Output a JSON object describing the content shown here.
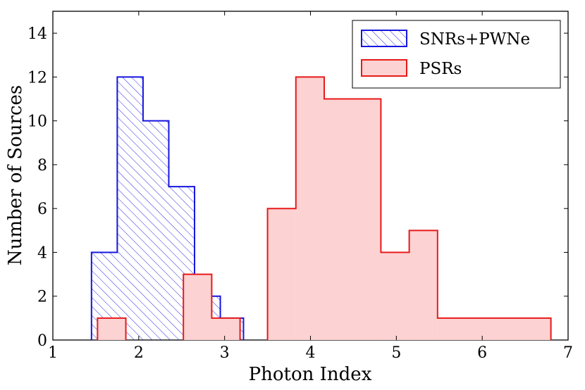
{
  "chart_data": {
    "type": "histogram",
    "xlabel": "Photon Index",
    "ylabel": "Number of Sources",
    "xlim": [
      1,
      7
    ],
    "ylim": [
      0,
      15
    ],
    "x_ticks": [
      1,
      2,
      3,
      4,
      5,
      6,
      7
    ],
    "y_ticks": [
      0,
      2,
      4,
      6,
      8,
      10,
      12,
      14
    ],
    "grid": false,
    "legend_position": "top-right",
    "series": [
      {
        "name": "SNRs+PWNe",
        "style": "hatched",
        "color": "#1515e0",
        "bins": [
          {
            "x0": 1.45,
            "x1": 1.75,
            "count": 4
          },
          {
            "x0": 1.75,
            "x1": 2.05,
            "count": 12
          },
          {
            "x0": 2.05,
            "x1": 2.35,
            "count": 10
          },
          {
            "x0": 2.35,
            "x1": 2.65,
            "count": 7
          },
          {
            "x0": 2.65,
            "x1": 2.95,
            "count": 2
          },
          {
            "x0": 2.95,
            "x1": 3.22,
            "count": 1
          }
        ]
      },
      {
        "name": "PSRs",
        "style": "filled",
        "color": "#e81a1a",
        "fill": "#fcd2d2",
        "bins": [
          {
            "x0": 1.52,
            "x1": 1.85,
            "count": 1
          },
          {
            "x0": 1.85,
            "x1": 2.52,
            "count": 0
          },
          {
            "x0": 2.52,
            "x1": 2.85,
            "count": 3
          },
          {
            "x0": 2.85,
            "x1": 3.18,
            "count": 1
          },
          {
            "x0": 3.18,
            "x1": 3.5,
            "count": 0
          },
          {
            "x0": 3.5,
            "x1": 3.83,
            "count": 6
          },
          {
            "x0": 3.83,
            "x1": 4.16,
            "count": 12
          },
          {
            "x0": 4.16,
            "x1": 4.82,
            "count": 11
          },
          {
            "x0": 4.82,
            "x1": 5.15,
            "count": 4
          },
          {
            "x0": 5.15,
            "x1": 5.48,
            "count": 5
          },
          {
            "x0": 5.48,
            "x1": 6.8,
            "count": 1
          }
        ]
      }
    ]
  }
}
